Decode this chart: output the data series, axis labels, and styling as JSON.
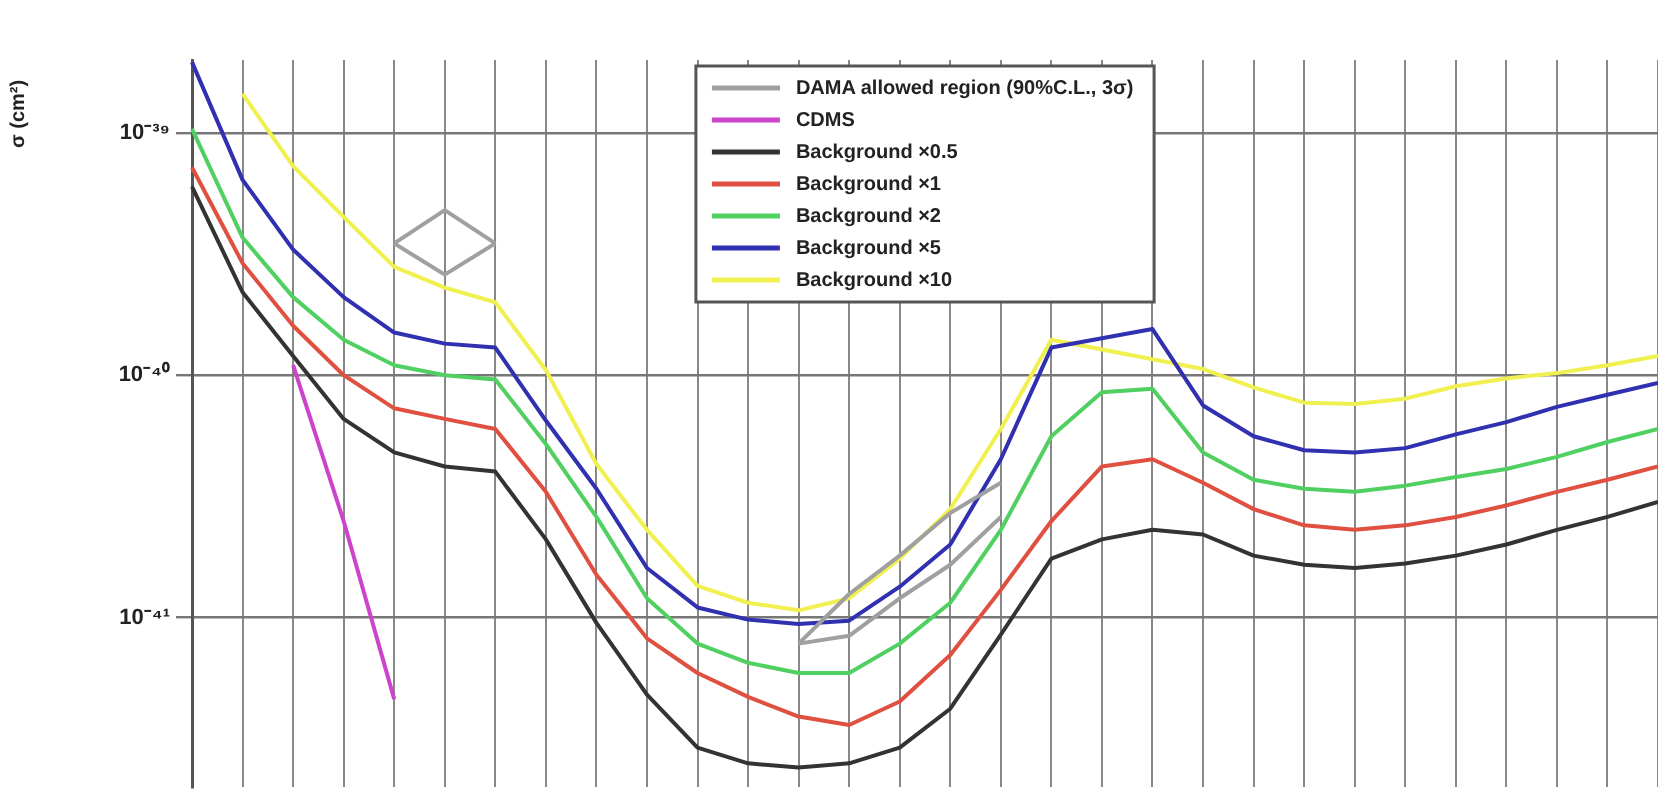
{
  "chart_data": {
    "type": "line",
    "ylabel": "σ (cm²)",
    "legend": "top",
    "grid": true,
    "log": "y",
    "tick_labels": "y",
    "marker": "none",
    "line_style": "solid",
    "categories": [
      null,
      null,
      null,
      null,
      null,
      null,
      null,
      null,
      null,
      null,
      null,
      null,
      null,
      null,
      null,
      null,
      null,
      null,
      null,
      null,
      null,
      null,
      null,
      null,
      null,
      null,
      null,
      null,
      null,
      null
    ],
    "ylim": [
      2e-42,
      2e-39
    ],
    "yticks": [
      {
        "value": 1e-41,
        "label": "10⁻⁴¹"
      },
      {
        "value": 1e-40,
        "label": "10⁻⁴⁰"
      },
      {
        "value": 1e-39,
        "label": "10⁻³⁹"
      }
    ],
    "series": [
      {
        "name": "DAMA allowed region (90%C.L., 3σ)",
        "color": "#a0a0a0",
        "values": [
          null,
          null,
          null,
          null,
          3.5e-40,
          4.8e-40,
          3.5e-40,
          null,
          null,
          null,
          null,
          null,
          null,
          null,
          null,
          null,
          null,
          null,
          null,
          null,
          null,
          null,
          null,
          null,
          null,
          null,
          null,
          null,
          null,
          null
        ]
      },
      {
        "color": "#a0a0a0",
        "values": [
          null,
          null,
          null,
          null,
          3.5e-40,
          2.6e-40,
          3.5e-40,
          null,
          null,
          null,
          null,
          null,
          null,
          null,
          null,
          null,
          null,
          null,
          null,
          null,
          null,
          null,
          null,
          null,
          null,
          null,
          null,
          null,
          null,
          null
        ]
      },
      {
        "color": "#a0a0a0",
        "values": [
          null,
          null,
          null,
          null,
          null,
          null,
          null,
          null,
          null,
          null,
          null,
          null,
          7.8e-42,
          1.25e-41,
          1.8e-41,
          2.7e-41,
          3.6e-41,
          null,
          null,
          null,
          null,
          null,
          null,
          null,
          null,
          null,
          null,
          null,
          null,
          null
        ]
      },
      {
        "color": "#a0a0a0",
        "values": [
          null,
          null,
          null,
          null,
          null,
          null,
          null,
          null,
          null,
          null,
          null,
          null,
          7.8e-42,
          8.4e-42,
          1.2e-41,
          1.65e-41,
          2.6e-41,
          null,
          null,
          null,
          null,
          null,
          null,
          null,
          null,
          null,
          null,
          null,
          null,
          null
        ]
      },
      {
        "name": "CDMS",
        "color": "#cc44cc",
        "values": [
          null,
          null,
          1.1e-40,
          2.5e-41,
          4.6e-42,
          null,
          null,
          null,
          null,
          null,
          null,
          null,
          null,
          null,
          null,
          null,
          null,
          null,
          null,
          null,
          null,
          null,
          null,
          null,
          null,
          null,
          null,
          null,
          null,
          null
        ]
      },
      {
        "name": "Background ×0.5",
        "color": "#333333",
        "values": [
          6e-40,
          2.2e-40,
          1.2e-40,
          6.6e-41,
          4.8e-41,
          4.2e-41,
          4e-41,
          2.1e-41,
          9.5e-42,
          4.8e-42,
          2.9e-42,
          2.5e-42,
          2.4e-42,
          2.5e-42,
          2.9e-42,
          4.2e-42,
          8.5e-42,
          1.75e-41,
          2.1e-41,
          2.3e-41,
          2.2e-41,
          1.8e-41,
          1.65e-41,
          1.6e-41,
          1.67e-41,
          1.8e-41,
          2e-41,
          2.3e-41,
          2.6e-41,
          3e-41
        ]
      },
      {
        "name": "Background ×1",
        "color": "#e05040",
        "values": [
          7.2e-40,
          2.9e-40,
          1.6e-40,
          1e-40,
          7.3e-41,
          6.6e-41,
          6e-41,
          3.3e-41,
          1.5e-41,
          8.2e-42,
          5.9e-42,
          4.7e-42,
          3.9e-42,
          3.6e-42,
          4.5e-42,
          7e-42,
          1.3e-41,
          2.5e-41,
          4.2e-41,
          4.5e-41,
          3.6e-41,
          2.8e-41,
          2.4e-41,
          2.3e-41,
          2.4e-41,
          2.6e-41,
          2.9e-41,
          3.3e-41,
          3.7e-41,
          4.2e-41
        ]
      },
      {
        "name": "Background ×2",
        "color": "#50d060",
        "values": [
          1.04e-39,
          3.7e-40,
          2.1e-40,
          1.4e-40,
          1.1e-40,
          1e-40,
          9.6e-41,
          5.2e-41,
          2.6e-41,
          1.2e-41,
          7.8e-42,
          6.5e-42,
          5.9e-42,
          5.9e-42,
          7.8e-42,
          1.15e-41,
          2.3e-41,
          5.6e-41,
          8.5e-41,
          8.8e-41,
          4.8e-41,
          3.7e-41,
          3.4e-41,
          3.3e-41,
          3.5e-41,
          3.8e-41,
          4.1e-41,
          4.6e-41,
          5.3e-41,
          6e-41
        ]
      },
      {
        "name": "Background ×5",
        "color": "#3030b0",
        "values": [
          1.96e-39,
          6.4e-40,
          3.3e-40,
          2.1e-40,
          1.5e-40,
          1.35e-40,
          1.3e-40,
          6.5e-41,
          3.4e-41,
          1.6e-41,
          1.1e-41,
          9.8e-42,
          9.4e-42,
          9.7e-42,
          1.34e-41,
          2e-41,
          4.5e-41,
          1.3e-40,
          null,
          1.55e-40,
          7.5e-41,
          5.6e-41,
          4.9e-41,
          4.8e-41,
          5e-41,
          5.7e-41,
          6.4e-41,
          7.4e-41,
          8.3e-41,
          9.3e-41
        ]
      },
      {
        "name": "Background ×10",
        "color": "#f0f050",
        "values": [
          null,
          1.45e-39,
          7.3e-40,
          4.5e-40,
          2.8e-40,
          2.3e-40,
          2e-40,
          1.05e-40,
          4.3e-41,
          2.3e-41,
          1.35e-41,
          1.15e-41,
          1.07e-41,
          1.2e-41,
          1.75e-41,
          2.8e-41,
          6e-41,
          1.4e-40,
          null,
          null,
          1.06e-40,
          8.9e-41,
          7.7e-41,
          7.6e-41,
          8e-41,
          9e-41,
          9.7e-41,
          1.02e-40,
          1.1e-40,
          1.2e-40
        ]
      }
    ]
  }
}
